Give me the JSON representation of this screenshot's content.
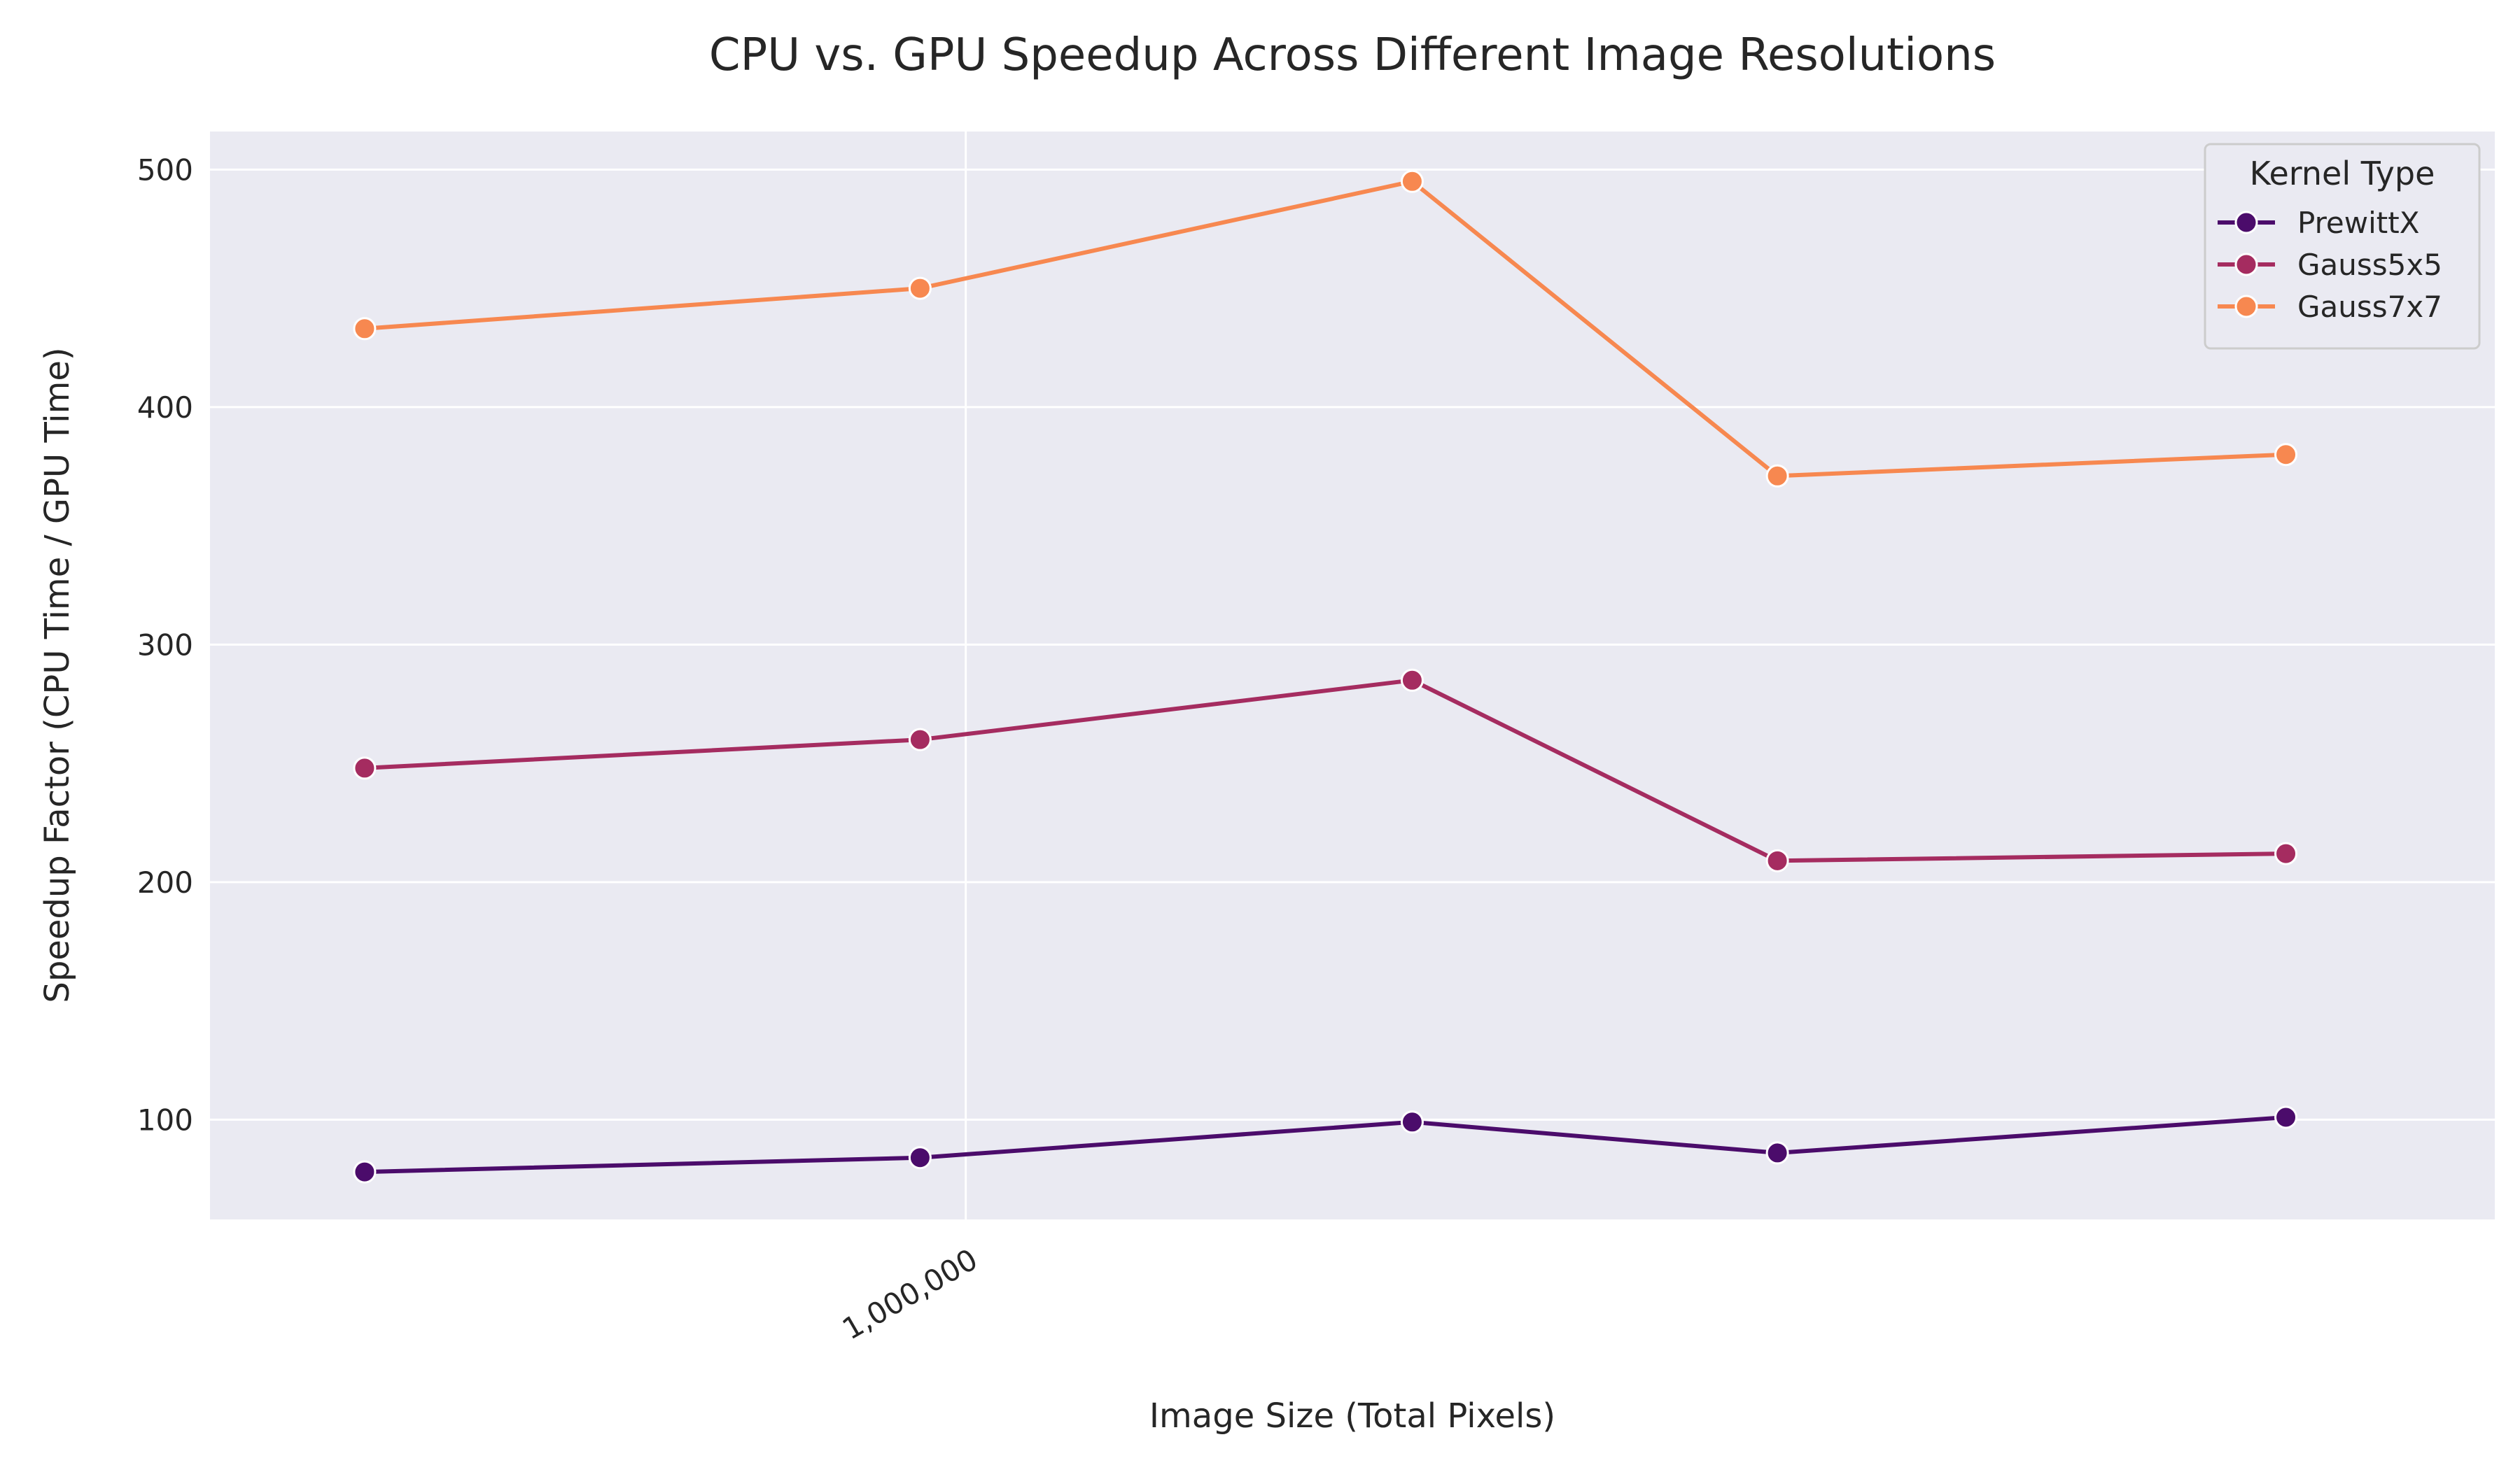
{
  "chart_data": {
    "type": "line",
    "title": "CPU vs. GPU Speedup Across Different Image Resolutions",
    "xlabel": "Image Size (Total Pixels)",
    "ylabel": "Speedup Factor (CPU Time / GPU Time)",
    "x_scale": "log",
    "x": [
      250000,
      900000,
      2800000,
      6500000,
      21000000
    ],
    "x_ticks": [
      1000000
    ],
    "x_tick_labels": [
      "1,000,000"
    ],
    "xlim": [
      175000,
      34000000
    ],
    "ylim": [
      58,
      516
    ],
    "y_ticks": [
      100,
      200,
      300,
      400,
      500
    ],
    "grid": true,
    "legend": {
      "title": "Kernel Type",
      "position": "top-right"
    },
    "series": [
      {
        "name": "PrewittX",
        "color": "#4b0c6b",
        "values": [
          78,
          84,
          99,
          86,
          101
        ]
      },
      {
        "name": "Gauss5x5",
        "color": "#a52c60",
        "values": [
          248,
          260,
          285,
          209,
          212
        ]
      },
      {
        "name": "Gauss7x7",
        "color": "#f78850",
        "values": [
          433,
          450,
          495,
          371,
          380
        ]
      }
    ]
  },
  "colors": {
    "plot_background": "#eaeaf2",
    "grid": "#ffffff",
    "text": "#262626"
  }
}
